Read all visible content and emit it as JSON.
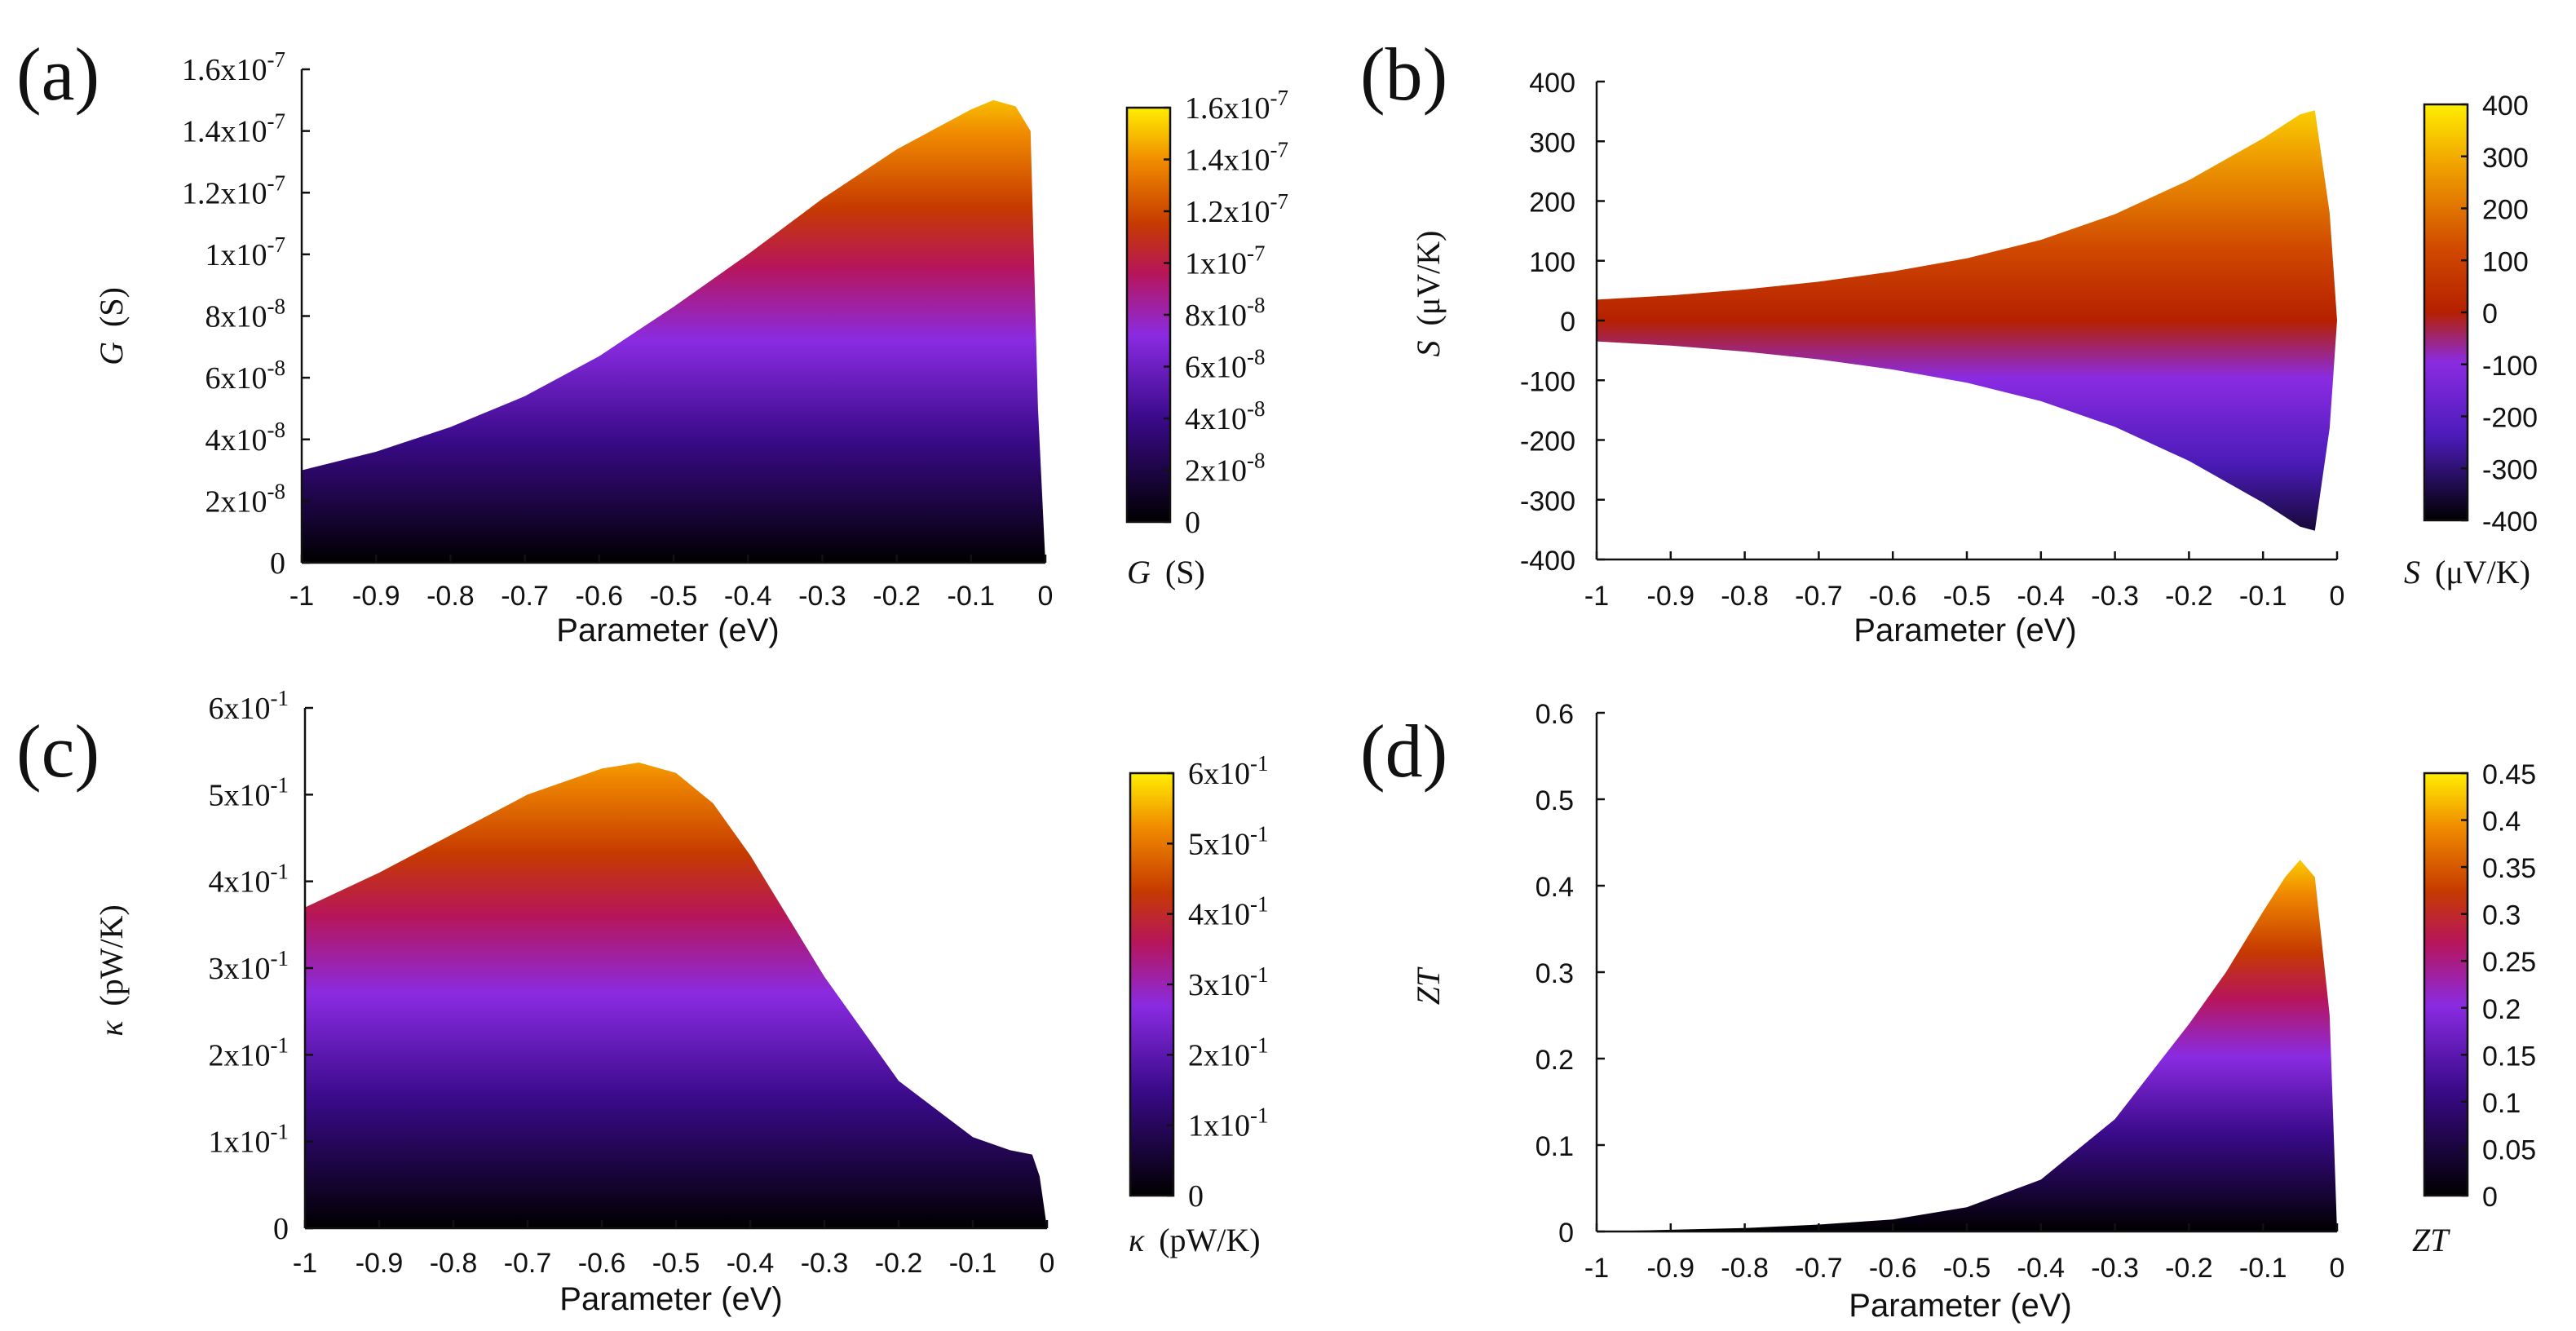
{
  "chart_data": [
    {
      "panel": "(a)",
      "type": "area",
      "xlabel": "Parameter (eV)",
      "ylabel_symbol": "G",
      "ylabel_unit": "(S)",
      "x_ticks": [
        "-1",
        "-0.9",
        "-0.8",
        "-0.7",
        "-0.6",
        "-0.5",
        "-0.4",
        "-0.3",
        "-0.2",
        "-0.1",
        "0"
      ],
      "xlim": [
        -1,
        0
      ],
      "y_ticks": [
        "0",
        "2x10-8",
        "4x10-8",
        "6x10-8",
        "8x10-8",
        "1x10-7",
        "1.2x10-7",
        "1.4x10-7",
        "1.6x10-7"
      ],
      "ylim": [
        0,
        1.6e-07
      ],
      "colorbar_ticks": [
        "0",
        "2x10-8",
        "4x10-8",
        "6x10-8",
        "8x10-8",
        "1x10-7",
        "1.2x10-7",
        "1.4x10-7",
        "1.6x10-7"
      ],
      "colorbar_range": [
        0,
        1.6e-07
      ],
      "colorbar_label_symbol": "G",
      "colorbar_label_unit": "(S)",
      "lower_boundary": "zero",
      "upper_envelope": {
        "x": [
          -1,
          -0.9,
          -0.8,
          -0.7,
          -0.6,
          -0.5,
          -0.4,
          -0.3,
          -0.2,
          -0.1,
          -0.07,
          -0.04,
          -0.02,
          -0.01,
          0
        ],
        "y": [
          3e-08,
          3.6e-08,
          4.4e-08,
          5.4e-08,
          6.7e-08,
          8.3e-08,
          1e-07,
          1.18e-07,
          1.34e-07,
          1.47e-07,
          1.5e-07,
          1.48e-07,
          1.4e-07,
          5e-08,
          0
        ]
      }
    },
    {
      "panel": "(b)",
      "type": "area",
      "xlabel": "Parameter (eV)",
      "ylabel_symbol": "S",
      "ylabel_unit": "(μV/K)",
      "x_ticks": [
        "-1",
        "-0.9",
        "-0.8",
        "-0.7",
        "-0.6",
        "-0.5",
        "-0.4",
        "-0.3",
        "-0.2",
        "-0.1",
        "0"
      ],
      "xlim": [
        -1,
        0
      ],
      "y_ticks": [
        "-400",
        "-300",
        "-200",
        "-100",
        "0",
        "100",
        "200",
        "300",
        "400"
      ],
      "ylim": [
        -400,
        400
      ],
      "colorbar_ticks": [
        "-400",
        "-300",
        "-200",
        "-100",
        "0",
        "100",
        "200",
        "300",
        "400"
      ],
      "colorbar_range": [
        -400,
        400
      ],
      "colorbar_label_symbol": "S",
      "colorbar_label_unit": "(μV/K)",
      "lower_boundary": "mirror",
      "upper_envelope": {
        "x": [
          -1,
          -0.9,
          -0.8,
          -0.7,
          -0.6,
          -0.5,
          -0.4,
          -0.3,
          -0.2,
          -0.1,
          -0.05,
          -0.03,
          -0.01,
          0
        ],
        "y": [
          35,
          42,
          52,
          65,
          82,
          104,
          135,
          178,
          235,
          305,
          345,
          352,
          180,
          0
        ]
      }
    },
    {
      "panel": "(c)",
      "type": "area",
      "xlabel": "Parameter (eV)",
      "ylabel_symbol": "κ",
      "ylabel_unit": "(pW/K)",
      "x_ticks": [
        "-1",
        "-0.9",
        "-0.8",
        "-0.7",
        "-0.6",
        "-0.5",
        "-0.4",
        "-0.3",
        "-0.2",
        "-0.1",
        "0"
      ],
      "xlim": [
        -1,
        0
      ],
      "y_ticks": [
        "0",
        "1x10-1",
        "2x10-1",
        "3x10-1",
        "4x10-1",
        "5x10-1",
        "6x10-1"
      ],
      "ylim": [
        0,
        0.6
      ],
      "colorbar_ticks": [
        "0",
        "1x10-1",
        "2x10-1",
        "3x10-1",
        "4x10-1",
        "5x10-1",
        "6x10-1"
      ],
      "colorbar_range": [
        0,
        0.6
      ],
      "colorbar_label_symbol": "κ",
      "colorbar_label_unit": "(pW/K)",
      "lower_boundary": "zero",
      "upper_envelope": {
        "x": [
          -1,
          -0.9,
          -0.8,
          -0.7,
          -0.6,
          -0.55,
          -0.5,
          -0.45,
          -0.4,
          -0.3,
          -0.2,
          -0.1,
          -0.05,
          -0.02,
          -0.01,
          0
        ],
        "y": [
          0.37,
          0.41,
          0.455,
          0.5,
          0.53,
          0.537,
          0.525,
          0.49,
          0.43,
          0.29,
          0.17,
          0.105,
          0.09,
          0.085,
          0.06,
          0
        ]
      }
    },
    {
      "panel": "(d)",
      "type": "area",
      "xlabel": "Parameter (eV)",
      "ylabel_symbol": "ZT",
      "ylabel_unit": "",
      "x_ticks": [
        "-1",
        "-0.9",
        "-0.8",
        "-0.7",
        "-0.6",
        "-0.5",
        "-0.4",
        "-0.3",
        "-0.2",
        "-0.1",
        "0"
      ],
      "xlim": [
        -1,
        0
      ],
      "y_ticks": [
        "0",
        "0.1",
        "0.2",
        "0.3",
        "0.4",
        "0.5",
        "0.6"
      ],
      "ylim": [
        0,
        0.6
      ],
      "colorbar_ticks": [
        "0",
        "0.05",
        "0.1",
        "0.15",
        "0.2",
        "0.25",
        "0.3",
        "0.35",
        "0.4",
        "0.45"
      ],
      "colorbar_range": [
        0,
        0.45
      ],
      "colorbar_label_symbol": "ZT",
      "colorbar_label_unit": "",
      "lower_boundary": "zero",
      "upper_envelope": {
        "x": [
          -1,
          -0.9,
          -0.8,
          -0.7,
          -0.6,
          -0.5,
          -0.4,
          -0.3,
          -0.2,
          -0.15,
          -0.1,
          -0.07,
          -0.05,
          -0.03,
          -0.01,
          0
        ],
        "y": [
          0.0,
          0.002,
          0.004,
          0.008,
          0.014,
          0.028,
          0.06,
          0.13,
          0.24,
          0.3,
          0.37,
          0.41,
          0.43,
          0.41,
          0.25,
          0
        ]
      }
    }
  ]
}
